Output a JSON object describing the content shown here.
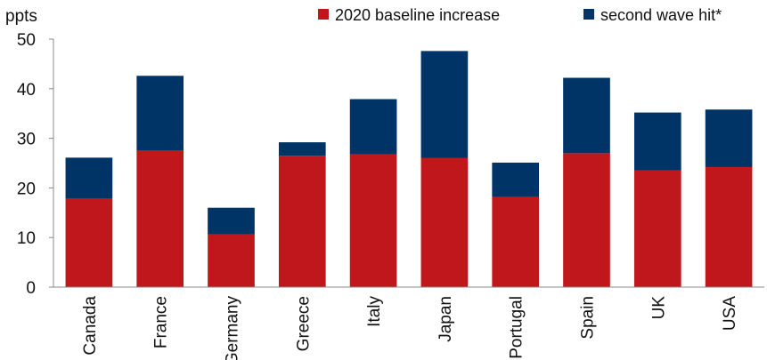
{
  "chart_data": {
    "type": "bar",
    "stacked": true,
    "unit_label": "ppts",
    "categories": [
      "Canada",
      "France",
      "Germany",
      "Greece",
      "Italy",
      "Japan",
      "Portugal",
      "Spain",
      "UK",
      "USA"
    ],
    "series": [
      {
        "name": "2020 baseline increase",
        "color": "#c0171d",
        "values": [
          17.8,
          27.6,
          10.6,
          26.5,
          26.8,
          26.0,
          18.2,
          27.0,
          23.5,
          24.2
        ]
      },
      {
        "name": "second wave hit*",
        "color": "#003366",
        "values": [
          8.3,
          15.0,
          5.4,
          2.7,
          11.1,
          21.6,
          6.9,
          15.2,
          11.7,
          11.6
        ]
      }
    ],
    "yticks": [
      0,
      10,
      20,
      30,
      40,
      50
    ],
    "ylim": [
      0,
      50
    ],
    "legend_position": "top-right",
    "grid": false
  }
}
